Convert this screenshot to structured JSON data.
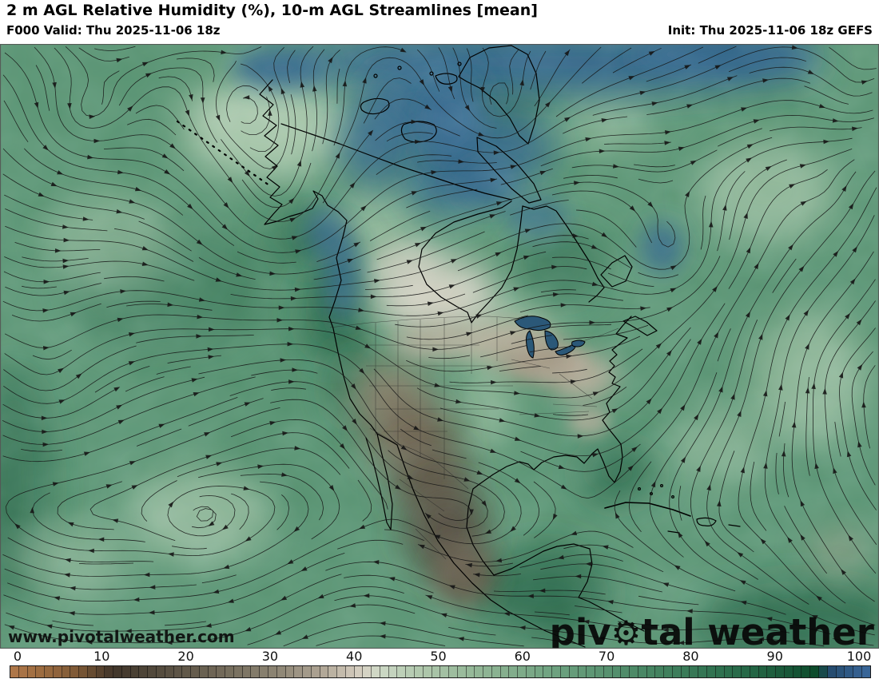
{
  "header": {
    "title": "2 m AGL Relative Humidity (%), 10-m AGL Streamlines [mean]",
    "forecast_hour": "F000",
    "valid_label": "F000 Valid: Thu 2025-11-06 18z",
    "init_label": "Init: Thu 2025-11-06 18z GEFS",
    "model": "GEFS"
  },
  "map": {
    "watermark_url": "www.pivotalweather.com",
    "brand": {
      "pre": "piv",
      "gear_icon": "⚙",
      "post": "tal weather"
    }
  },
  "colorbar": {
    "unit": "%",
    "ticks": [
      "0",
      "10",
      "20",
      "30",
      "40",
      "50",
      "60",
      "70",
      "80",
      "90",
      "100"
    ],
    "stops": [
      {
        "v": 0,
        "c": "#b1794a"
      },
      {
        "v": 4,
        "c": "#9a6a3f"
      },
      {
        "v": 8,
        "c": "#7c5836"
      },
      {
        "v": 12,
        "c": "#403529"
      },
      {
        "v": 16,
        "c": "#4f4639"
      },
      {
        "v": 21,
        "c": "#635a4b"
      },
      {
        "v": 26,
        "c": "#78705f"
      },
      {
        "v": 31,
        "c": "#8d8574"
      },
      {
        "v": 36,
        "c": "#ada393"
      },
      {
        "v": 39,
        "c": "#c9c0b1"
      },
      {
        "v": 41,
        "c": "#d8d1c3"
      },
      {
        "v": 43,
        "c": "#cdd9c6"
      },
      {
        "v": 47,
        "c": "#b4cab0"
      },
      {
        "v": 52,
        "c": "#9cbc9d"
      },
      {
        "v": 58,
        "c": "#84ae8d"
      },
      {
        "v": 64,
        "c": "#6ba07e"
      },
      {
        "v": 70,
        "c": "#55906e"
      },
      {
        "v": 76,
        "c": "#41815e"
      },
      {
        "v": 82,
        "c": "#2f7250"
      },
      {
        "v": 87,
        "c": "#226343"
      },
      {
        "v": 91,
        "c": "#165536"
      },
      {
        "v": 94,
        "c": "#0b4a2a"
      },
      {
        "v": 95,
        "c": "#24496b"
      },
      {
        "v": 97,
        "c": "#2d567f"
      },
      {
        "v": 100,
        "c": "#3a689c"
      }
    ]
  }
}
